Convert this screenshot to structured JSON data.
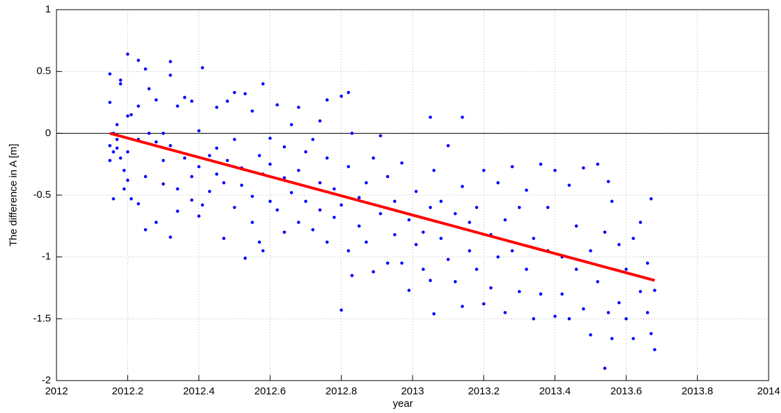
{
  "chart_data": {
    "type": "scatter",
    "xlabel": "year",
    "ylabel": "The difference in A [m]",
    "xlim": [
      2012,
      2014
    ],
    "xticks": [
      2012,
      2012.2,
      2012.4,
      2012.6,
      2012.8,
      2013,
      2013.2,
      2013.4,
      2013.6,
      2013.8,
      2014
    ],
    "ylim": [
      -2,
      1
    ],
    "yticks": [
      -2,
      -1.5,
      -1,
      -0.5,
      0,
      0.5,
      1
    ],
    "grid": true,
    "reference_line": 0,
    "series": [
      {
        "mode": "markers",
        "color": "#0000ff",
        "x": [
          2012.15,
          2012.15,
          2012.15,
          2012.15,
          2012.16,
          2012.16,
          2012.16,
          2012.17,
          2012.17,
          2012.17,
          2012.18,
          2012.18,
          2012.18,
          2012.19,
          2012.19,
          2012.2,
          2012.2,
          2012.2,
          2012.2,
          2012.21,
          2012.21,
          2012.23,
          2012.23,
          2012.23,
          2012.23,
          2012.25,
          2012.25,
          2012.25,
          2012.26,
          2012.26,
          2012.28,
          2012.28,
          2012.28,
          2012.3,
          2012.3,
          2012.3,
          2012.32,
          2012.32,
          2012.32,
          2012.32,
          2012.34,
          2012.34,
          2012.34,
          2012.36,
          2012.36,
          2012.38,
          2012.38,
          2012.38,
          2012.4,
          2012.4,
          2012.4,
          2012.41,
          2012.41,
          2012.43,
          2012.43,
          2012.45,
          2012.45,
          2012.45,
          2012.47,
          2012.47,
          2012.48,
          2012.48,
          2012.5,
          2012.5,
          2012.5,
          2012.52,
          2012.52,
          2012.53,
          2012.53,
          2012.55,
          2012.55,
          2012.55,
          2012.57,
          2012.57,
          2012.58,
          2012.58,
          2012.58,
          2012.6,
          2012.6,
          2012.6,
          2012.62,
          2012.62,
          2012.64,
          2012.64,
          2012.64,
          2012.66,
          2012.66,
          2012.68,
          2012.68,
          2012.68,
          2012.7,
          2012.7,
          2012.72,
          2012.72,
          2012.74,
          2012.74,
          2012.74,
          2012.76,
          2012.76,
          2012.76,
          2012.78,
          2012.78,
          2012.8,
          2012.8,
          2012.8,
          2012.82,
          2012.82,
          2012.82,
          2012.83,
          2012.83,
          2012.85,
          2012.85,
          2012.87,
          2012.87,
          2012.89,
          2012.89,
          2012.91,
          2012.91,
          2012.93,
          2012.93,
          2012.95,
          2012.95,
          2012.97,
          2012.97,
          2012.99,
          2012.99,
          2013.01,
          2013.01,
          2013.03,
          2013.03,
          2013.05,
          2013.05,
          2013.05,
          2013.06,
          2013.06,
          2013.08,
          2013.08,
          2013.1,
          2013.1,
          2013.12,
          2013.12,
          2013.14,
          2013.14,
          2013.14,
          2013.16,
          2013.16,
          2013.18,
          2013.18,
          2013.2,
          2013.2,
          2013.22,
          2013.22,
          2013.24,
          2013.24,
          2013.26,
          2013.26,
          2013.28,
          2013.28,
          2013.3,
          2013.3,
          2013.32,
          2013.32,
          2013.34,
          2013.34,
          2013.36,
          2013.36,
          2013.38,
          2013.38,
          2013.4,
          2013.4,
          2013.42,
          2013.42,
          2013.44,
          2013.44,
          2013.46,
          2013.46,
          2013.48,
          2013.48,
          2013.5,
          2013.5,
          2013.52,
          2013.52,
          2013.54,
          2013.54,
          2013.55,
          2013.55,
          2013.56,
          2013.56,
          2013.58,
          2013.58,
          2013.6,
          2013.6,
          2013.62,
          2013.62,
          2013.64,
          2013.64,
          2013.66,
          2013.66,
          2013.67,
          2013.67,
          2013.68,
          2013.68
        ],
        "values": [
          0.48,
          0.25,
          -0.22,
          -0.1,
          -0.53,
          0,
          -0.15,
          0.07,
          -0.05,
          -0.12,
          0.4,
          0.43,
          -0.2,
          -0.3,
          -0.45,
          0.64,
          0.14,
          -0.15,
          -0.38,
          -0.53,
          0.15,
          0.59,
          0.22,
          -0.05,
          -0.57,
          0.52,
          -0.78,
          -0.35,
          0.36,
          0,
          -0.72,
          -0.07,
          0.27,
          -0.41,
          -0.22,
          0,
          0.58,
          0.47,
          -0.84,
          -0.1,
          0.22,
          -0.63,
          -0.45,
          0.29,
          -0.2,
          0.26,
          -0.35,
          -0.54,
          0.02,
          -0.67,
          -0.27,
          0.53,
          -0.58,
          -0.18,
          -0.47,
          0.21,
          -0.33,
          -0.12,
          -0.85,
          -0.4,
          0.26,
          -0.22,
          0.33,
          -0.6,
          -0.05,
          -0.42,
          -0.28,
          0.32,
          -1.01,
          0.18,
          -0.72,
          -0.51,
          -0.88,
          -0.18,
          0.4,
          -0.95,
          -0.33,
          -0.25,
          -0.55,
          -0.04,
          0.23,
          -0.62,
          -0.8,
          -0.11,
          -0.36,
          0.07,
          -0.48,
          0.21,
          -0.72,
          -0.3,
          -0.55,
          -0.15,
          -0.78,
          -0.05,
          0.1,
          -0.62,
          -0.4,
          0.27,
          -0.88,
          -0.2,
          -0.68,
          -0.45,
          0.3,
          -1.43,
          -0.58,
          0.33,
          -0.95,
          -0.27,
          -1.15,
          0,
          -0.52,
          -0.75,
          -0.4,
          -0.88,
          -1.12,
          -0.2,
          -0.65,
          -0.02,
          -1.05,
          -0.35,
          -0.82,
          -0.55,
          -1.05,
          -0.24,
          -1.27,
          -0.7,
          -0.47,
          -0.9,
          -1.1,
          -0.8,
          0.13,
          -1.19,
          -0.6,
          -1.46,
          -0.3,
          -0.85,
          -0.55,
          -1.02,
          -0.1,
          -0.65,
          -1.2,
          0.13,
          -1.4,
          -0.43,
          -0.95,
          -0.72,
          -0.6,
          -1.1,
          -1.38,
          -0.3,
          -0.82,
          -1.25,
          -0.4,
          -1,
          -1.45,
          -0.7,
          -0.27,
          -0.95,
          -1.28,
          -0.6,
          -1.1,
          -0.46,
          -1.5,
          -0.85,
          -0.25,
          -1.3,
          -0.95,
          -0.6,
          -1.48,
          -0.3,
          -1,
          -1.3,
          -0.42,
          -1.5,
          -1.1,
          -0.75,
          -1.42,
          -0.28,
          -1.63,
          -0.95,
          -0.25,
          -1.2,
          -1.9,
          -0.8,
          -0.39,
          -1.45,
          -1.66,
          -0.55,
          -1.37,
          -0.9,
          -1.1,
          -1.5,
          -0.85,
          -1.66,
          -0.72,
          -1.28,
          -1.45,
          -1.05,
          -0.53,
          -1.62,
          -1.75,
          -1.27
        ]
      },
      {
        "mode": "line",
        "color": "#ff0000",
        "x": [
          2012.15,
          2013.68
        ],
        "values": [
          0,
          -1.19
        ]
      }
    ]
  }
}
